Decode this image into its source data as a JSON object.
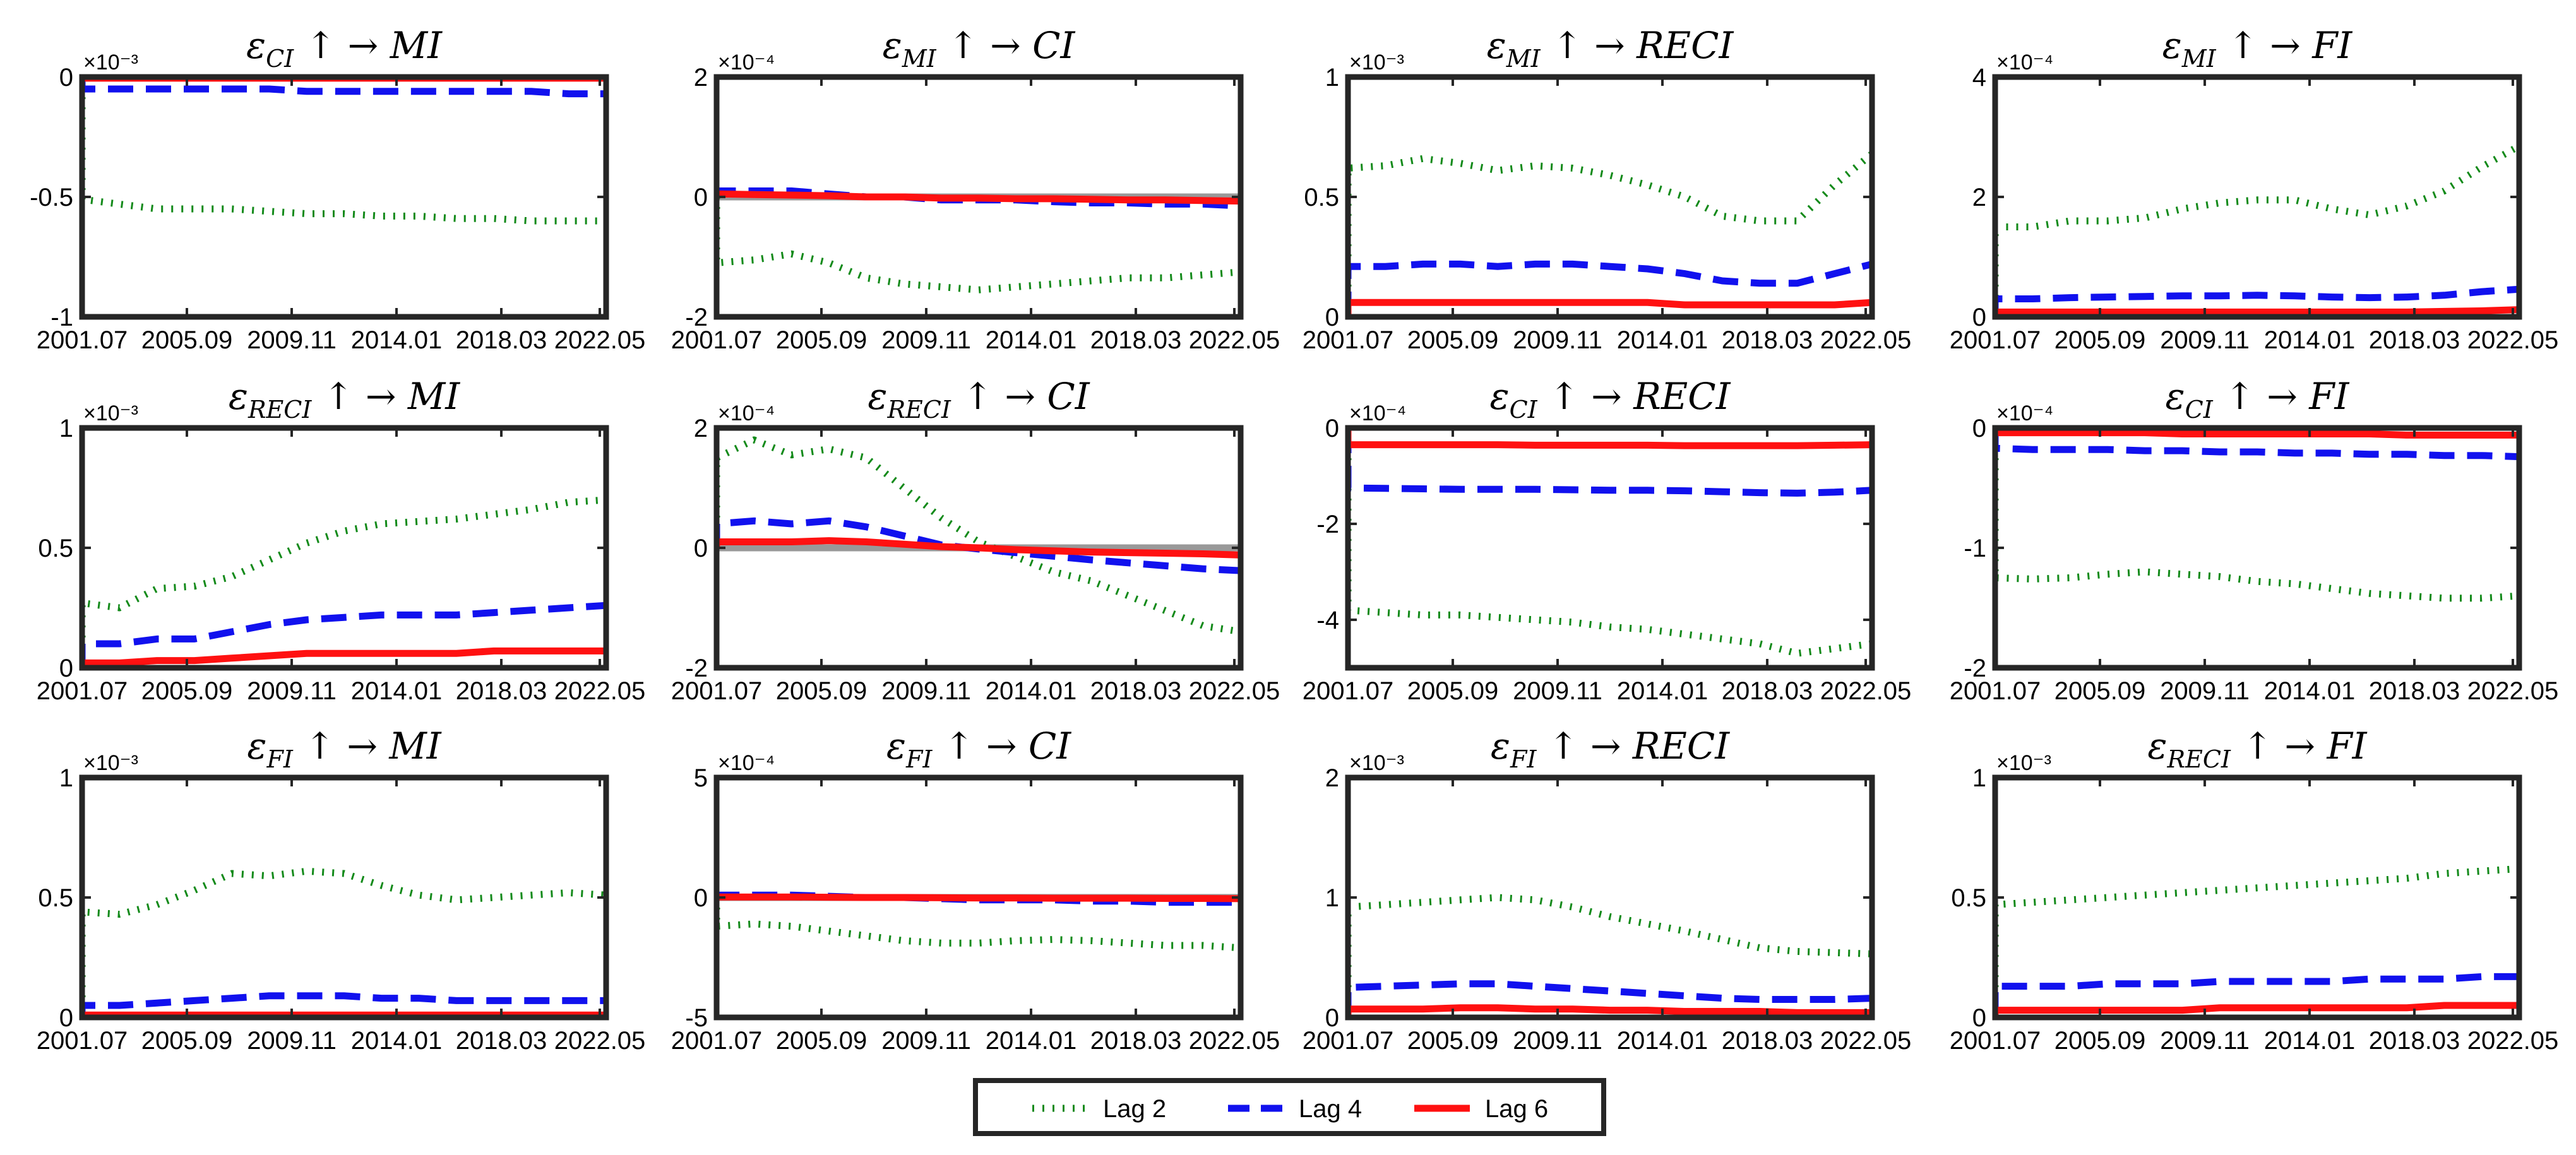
{
  "chart_data": {
    "type": "line",
    "layout": "grid 3x4",
    "x_tick_labels": [
      "2001.07",
      "2005.09",
      "2009.11",
      "2014.01",
      "2018.03",
      "2022.05"
    ],
    "x_range": [
      "2001.07",
      "2022.05"
    ],
    "series_styles": [
      {
        "name": "Lag 2",
        "color": "#138a1a",
        "style": "dotted"
      },
      {
        "name": "Lag 4",
        "color": "#1111ee",
        "style": "dashed"
      },
      {
        "name": "Lag 6",
        "color": "#ff1111",
        "style": "solid"
      }
    ],
    "zero_line_color": "#999999",
    "legend": {
      "position": "bottom-center",
      "entries": [
        "Lag 2",
        "Lag 4",
        "Lag 6"
      ]
    },
    "panels": [
      {
        "id": "p1",
        "title_base": "ε",
        "title_sub": "CI",
        "title_rest": " ↑ →  MI",
        "scale": "×10⁻³",
        "ylim": [
          -1,
          0
        ],
        "yticks": [
          "-1",
          "-0.5",
          "0"
        ],
        "series": [
          {
            "name": "Lag 2",
            "values": [
              -0.51,
              -0.53,
              -0.55,
              -0.55,
              -0.55,
              -0.56,
              -0.57,
              -0.57,
              -0.58,
              -0.58,
              -0.59,
              -0.59,
              -0.6,
              -0.6,
              -0.6
            ]
          },
          {
            "name": "Lag 4",
            "values": [
              -0.05,
              -0.05,
              -0.05,
              -0.05,
              -0.05,
              -0.05,
              -0.06,
              -0.06,
              -0.06,
              -0.06,
              -0.06,
              -0.06,
              -0.06,
              -0.07,
              -0.07
            ]
          },
          {
            "name": "Lag 6",
            "values": [
              -0.005,
              -0.005,
              -0.005,
              -0.005,
              -0.005,
              -0.005,
              -0.005,
              -0.005,
              -0.005,
              -0.005,
              -0.005,
              -0.005,
              -0.005,
              -0.005,
              -0.005
            ]
          }
        ]
      },
      {
        "id": "p2",
        "title_base": "ε",
        "title_sub": "MI",
        "title_rest": " ↑ →  CI",
        "scale": "×10⁻⁴",
        "ylim": [
          -2,
          2
        ],
        "yticks": [
          "-2",
          "0",
          "2"
        ],
        "zero_line": true,
        "series": [
          {
            "name": "Lag 2",
            "values": [
              -1.1,
              -1.05,
              -0.95,
              -1.1,
              -1.35,
              -1.45,
              -1.5,
              -1.55,
              -1.5,
              -1.45,
              -1.4,
              -1.35,
              -1.35,
              -1.3,
              -1.25
            ]
          },
          {
            "name": "Lag 4",
            "values": [
              0.1,
              0.1,
              0.1,
              0.05,
              0.0,
              0.0,
              -0.05,
              -0.05,
              -0.05,
              -0.08,
              -0.1,
              -0.1,
              -0.12,
              -0.12,
              -0.15
            ]
          },
          {
            "name": "Lag 6",
            "values": [
              0.05,
              0.04,
              0.03,
              0.02,
              0.0,
              0.0,
              -0.02,
              -0.02,
              -0.03,
              -0.03,
              -0.04,
              -0.05,
              -0.05,
              -0.06,
              -0.07
            ]
          }
        ]
      },
      {
        "id": "p3",
        "title_base": "ε",
        "title_sub": "MI",
        "title_rest": " ↑ →  RECI",
        "scale": "×10⁻³",
        "ylim": [
          0,
          1
        ],
        "yticks": [
          "0",
          "0.5",
          "1"
        ],
        "series": [
          {
            "name": "Lag 2",
            "values": [
              0.62,
              0.63,
              0.66,
              0.64,
              0.61,
              0.63,
              0.62,
              0.59,
              0.55,
              0.5,
              0.42,
              0.4,
              0.4,
              0.55,
              0.68
            ]
          },
          {
            "name": "Lag 4",
            "values": [
              0.21,
              0.21,
              0.22,
              0.22,
              0.21,
              0.22,
              0.22,
              0.21,
              0.2,
              0.18,
              0.15,
              0.14,
              0.14,
              0.18,
              0.22
            ]
          },
          {
            "name": "Lag 6",
            "values": [
              0.06,
              0.06,
              0.06,
              0.06,
              0.06,
              0.06,
              0.06,
              0.06,
              0.06,
              0.05,
              0.05,
              0.05,
              0.05,
              0.05,
              0.06
            ]
          }
        ]
      },
      {
        "id": "p4",
        "title_base": "ε",
        "title_sub": "MI",
        "title_rest": " ↑ →  FI",
        "scale": "×10⁻⁴",
        "ylim": [
          0,
          4
        ],
        "yticks": [
          "0",
          "2",
          "4"
        ],
        "series": [
          {
            "name": "Lag 2",
            "values": [
              1.5,
              1.5,
              1.6,
              1.6,
              1.65,
              1.8,
              1.9,
              1.95,
              1.95,
              1.8,
              1.7,
              1.85,
              2.1,
              2.5,
              2.85
            ]
          },
          {
            "name": "Lag 4",
            "values": [
              0.3,
              0.3,
              0.32,
              0.33,
              0.34,
              0.35,
              0.35,
              0.36,
              0.35,
              0.33,
              0.32,
              0.33,
              0.36,
              0.42,
              0.46
            ]
          },
          {
            "name": "Lag 6",
            "values": [
              0.08,
              0.08,
              0.08,
              0.08,
              0.08,
              0.08,
              0.08,
              0.08,
              0.08,
              0.08,
              0.08,
              0.08,
              0.09,
              0.1,
              0.12
            ]
          }
        ]
      },
      {
        "id": "p5",
        "title_base": "ε",
        "title_sub": "RECI",
        "title_rest": " ↑ →  MI",
        "scale": "×10⁻³",
        "ylim": [
          0,
          1
        ],
        "yticks": [
          "0",
          "0.5",
          "1"
        ],
        "series": [
          {
            "name": "Lag 2",
            "values": [
              0.27,
              0.25,
              0.33,
              0.34,
              0.38,
              0.45,
              0.52,
              0.57,
              0.6,
              0.61,
              0.62,
              0.64,
              0.66,
              0.69,
              0.7
            ]
          },
          {
            "name": "Lag 4",
            "values": [
              0.1,
              0.1,
              0.12,
              0.12,
              0.15,
              0.18,
              0.2,
              0.21,
              0.22,
              0.22,
              0.22,
              0.23,
              0.24,
              0.25,
              0.26
            ]
          },
          {
            "name": "Lag 6",
            "values": [
              0.02,
              0.02,
              0.03,
              0.03,
              0.04,
              0.05,
              0.06,
              0.06,
              0.06,
              0.06,
              0.06,
              0.07,
              0.07,
              0.07,
              0.07
            ]
          }
        ]
      },
      {
        "id": "p6",
        "title_base": "ε",
        "title_sub": "RECI",
        "title_rest": " ↑ →  CI",
        "scale": "×10⁻⁴",
        "ylim": [
          -2,
          2
        ],
        "yticks": [
          "-2",
          "0",
          "2"
        ],
        "zero_line": true,
        "series": [
          {
            "name": "Lag 2",
            "values": [
              1.5,
              1.8,
              1.55,
              1.65,
              1.5,
              1.0,
              0.5,
              0.1,
              -0.15,
              -0.4,
              -0.55,
              -0.8,
              -1.05,
              -1.3,
              -1.4
            ]
          },
          {
            "name": "Lag 4",
            "values": [
              0.4,
              0.45,
              0.4,
              0.45,
              0.35,
              0.2,
              0.05,
              -0.02,
              -0.08,
              -0.14,
              -0.2,
              -0.25,
              -0.3,
              -0.35,
              -0.38
            ]
          },
          {
            "name": "Lag 6",
            "values": [
              0.1,
              0.1,
              0.1,
              0.12,
              0.1,
              0.06,
              0.02,
              0.0,
              -0.03,
              -0.05,
              -0.07,
              -0.08,
              -0.09,
              -0.1,
              -0.12
            ]
          }
        ]
      },
      {
        "id": "p7",
        "title_base": "ε",
        "title_sub": "CI",
        "title_rest": " ↑ →  RECI",
        "scale": "×10⁻⁴",
        "ylim": [
          -5,
          0
        ],
        "yticks": [
          "-4",
          "-2",
          "0"
        ],
        "series": [
          {
            "name": "Lag 2",
            "values": [
              -3.8,
              -3.85,
              -3.9,
              -3.9,
              -3.95,
              -4.0,
              -4.05,
              -4.15,
              -4.2,
              -4.3,
              -4.4,
              -4.5,
              -4.7,
              -4.6,
              -4.5
            ]
          },
          {
            "name": "Lag 4",
            "values": [
              -1.25,
              -1.26,
              -1.27,
              -1.28,
              -1.28,
              -1.28,
              -1.29,
              -1.3,
              -1.3,
              -1.31,
              -1.33,
              -1.35,
              -1.36,
              -1.34,
              -1.3
            ]
          },
          {
            "name": "Lag 6",
            "values": [
              -0.35,
              -0.35,
              -0.35,
              -0.35,
              -0.35,
              -0.36,
              -0.36,
              -0.36,
              -0.36,
              -0.37,
              -0.37,
              -0.37,
              -0.37,
              -0.36,
              -0.35
            ]
          }
        ]
      },
      {
        "id": "p8",
        "title_base": "ε",
        "title_sub": "CI",
        "title_rest": " ↑ →  FI",
        "scale": "×10⁻⁴",
        "ylim": [
          -2,
          0
        ],
        "yticks": [
          "-2",
          "-1",
          "0"
        ],
        "series": [
          {
            "name": "Lag 2",
            "values": [
              -1.25,
              -1.26,
              -1.25,
              -1.22,
              -1.2,
              -1.22,
              -1.24,
              -1.28,
              -1.3,
              -1.34,
              -1.38,
              -1.4,
              -1.42,
              -1.42,
              -1.4
            ]
          },
          {
            "name": "Lag 4",
            "values": [
              -0.17,
              -0.18,
              -0.18,
              -0.18,
              -0.19,
              -0.19,
              -0.2,
              -0.2,
              -0.21,
              -0.21,
              -0.22,
              -0.22,
              -0.23,
              -0.23,
              -0.24
            ]
          },
          {
            "name": "Lag 6",
            "values": [
              -0.04,
              -0.04,
              -0.04,
              -0.04,
              -0.04,
              -0.05,
              -0.05,
              -0.05,
              -0.05,
              -0.05,
              -0.05,
              -0.06,
              -0.06,
              -0.06,
              -0.06
            ]
          }
        ]
      },
      {
        "id": "p9",
        "title_base": "ε",
        "title_sub": "FI",
        "title_rest": " ↑ →  MI",
        "scale": "×10⁻³",
        "ylim": [
          0,
          1
        ],
        "yticks": [
          "0",
          "0.5",
          "1"
        ],
        "series": [
          {
            "name": "Lag 2",
            "values": [
              0.44,
              0.43,
              0.47,
              0.53,
              0.6,
              0.59,
              0.61,
              0.6,
              0.55,
              0.51,
              0.49,
              0.5,
              0.51,
              0.52,
              0.51
            ]
          },
          {
            "name": "Lag 4",
            "values": [
              0.05,
              0.05,
              0.06,
              0.07,
              0.08,
              0.09,
              0.09,
              0.09,
              0.08,
              0.08,
              0.07,
              0.07,
              0.07,
              0.07,
              0.07
            ]
          },
          {
            "name": "Lag 6",
            "values": [
              0.01,
              0.01,
              0.01,
              0.01,
              0.01,
              0.01,
              0.01,
              0.01,
              0.01,
              0.01,
              0.01,
              0.01,
              0.01,
              0.01,
              0.01
            ]
          }
        ]
      },
      {
        "id": "p10",
        "title_base": "ε",
        "title_sub": "FI",
        "title_rest": " ↑ →  CI",
        "scale": "×10⁻⁴",
        "ylim": [
          -5,
          5
        ],
        "yticks": [
          "-5",
          "0",
          "5"
        ],
        "zero_line": true,
        "series": [
          {
            "name": "Lag 2",
            "values": [
              -1.2,
              -1.1,
              -1.2,
              -1.4,
              -1.6,
              -1.8,
              -1.9,
              -1.9,
              -1.8,
              -1.75,
              -1.8,
              -1.9,
              -2.0,
              -2.0,
              -2.1
            ]
          },
          {
            "name": "Lag 4",
            "values": [
              0.1,
              0.1,
              0.1,
              0.05,
              0.0,
              0.0,
              -0.05,
              -0.1,
              -0.1,
              -0.1,
              -0.15,
              -0.15,
              -0.2,
              -0.2,
              -0.2
            ]
          },
          {
            "name": "Lag 6",
            "values": [
              0.02,
              0.02,
              0.02,
              0.01,
              0.0,
              0.0,
              -0.01,
              -0.02,
              -0.02,
              -0.03,
              -0.03,
              -0.03,
              -0.04,
              -0.04,
              -0.05
            ]
          }
        ]
      },
      {
        "id": "p11",
        "title_base": "ε",
        "title_sub": "FI",
        "title_rest": " ↑ →  RECI",
        "scale": "×10⁻³",
        "ylim": [
          0,
          2
        ],
        "yticks": [
          "0",
          "1",
          "2"
        ],
        "series": [
          {
            "name": "Lag 2",
            "values": [
              0.92,
              0.94,
              0.96,
              0.98,
              1.0,
              0.98,
              0.92,
              0.84,
              0.78,
              0.72,
              0.65,
              0.58,
              0.55,
              0.54,
              0.53
            ]
          },
          {
            "name": "Lag 4",
            "values": [
              0.25,
              0.26,
              0.27,
              0.28,
              0.28,
              0.26,
              0.24,
              0.22,
              0.2,
              0.18,
              0.16,
              0.15,
              0.15,
              0.15,
              0.16
            ]
          },
          {
            "name": "Lag 6",
            "values": [
              0.07,
              0.07,
              0.07,
              0.08,
              0.08,
              0.07,
              0.07,
              0.06,
              0.06,
              0.05,
              0.05,
              0.05,
              0.04,
              0.04,
              0.04
            ]
          }
        ]
      },
      {
        "id": "p12",
        "title_base": "ε",
        "title_sub": "RECI",
        "title_rest": " ↑ →  FI",
        "scale": "×10⁻³",
        "ylim": [
          0,
          1
        ],
        "yticks": [
          "0",
          "0.5",
          "1"
        ],
        "series": [
          {
            "name": "Lag 2",
            "values": [
              0.47,
              0.48,
              0.49,
              0.5,
              0.51,
              0.52,
              0.53,
              0.54,
              0.55,
              0.56,
              0.57,
              0.58,
              0.6,
              0.61,
              0.62
            ]
          },
          {
            "name": "Lag 4",
            "values": [
              0.13,
              0.13,
              0.13,
              0.14,
              0.14,
              0.14,
              0.15,
              0.15,
              0.15,
              0.15,
              0.16,
              0.16,
              0.16,
              0.17,
              0.17
            ]
          },
          {
            "name": "Lag 6",
            "values": [
              0.03,
              0.03,
              0.03,
              0.03,
              0.03,
              0.03,
              0.04,
              0.04,
              0.04,
              0.04,
              0.04,
              0.04,
              0.05,
              0.05,
              0.05
            ]
          }
        ]
      }
    ]
  }
}
